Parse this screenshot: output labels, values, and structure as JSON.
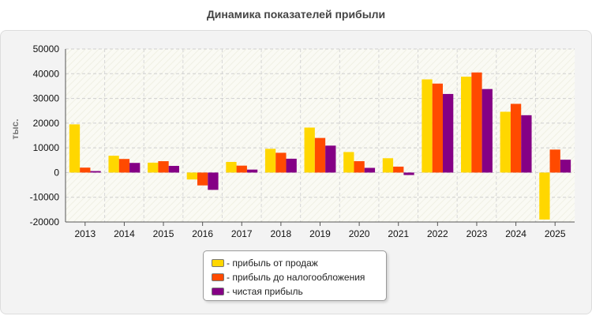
{
  "chart_data": {
    "type": "bar",
    "title": "Динамика показателей прибыли",
    "ylabel": "тыс.",
    "xlabel": "",
    "ylim": [
      -20000,
      50000
    ],
    "yticks": [
      50000,
      40000,
      30000,
      20000,
      10000,
      0,
      -10000,
      -20000
    ],
    "grid": true,
    "legend_position": "bottom",
    "categories": [
      "2013",
      "2014",
      "2015",
      "2016",
      "2017",
      "2018",
      "2019",
      "2020",
      "2021",
      "2022",
      "2023",
      "2024",
      "2025"
    ],
    "series": [
      {
        "name": "- прибыль от продаж",
        "color": "#FFD700",
        "values": [
          19500,
          6800,
          4000,
          -2800,
          4300,
          9600,
          18200,
          8300,
          5800,
          37700,
          38800,
          24600,
          -19000
        ]
      },
      {
        "name": "- прибыль до налогообложения",
        "color": "#FF4A00",
        "values": [
          2000,
          5500,
          4600,
          -5200,
          2800,
          8000,
          14000,
          4600,
          2400,
          36000,
          40500,
          27800,
          9300
        ]
      },
      {
        "name": "- чистая прибыль",
        "color": "#850085",
        "values": [
          600,
          3900,
          2700,
          -7000,
          1200,
          5600,
          10900,
          1900,
          -1000,
          31800,
          33800,
          23200,
          5200
        ]
      }
    ]
  }
}
